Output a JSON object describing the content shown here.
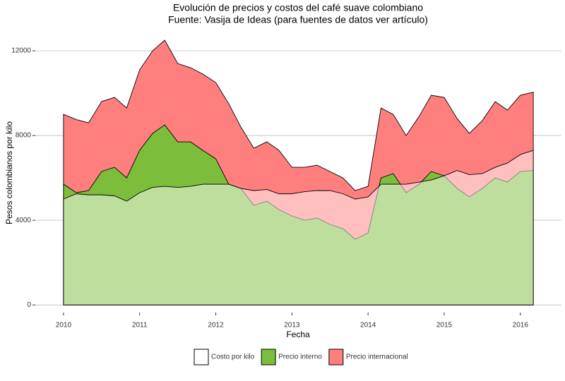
{
  "chart_data": {
    "type": "area",
    "title": "Evolución de precios y costos del café suave colombiano",
    "subtitle": "Fuente: Vasija de Ideas (para fuentes de datos ver artículo)",
    "x_label": "Fecha",
    "y_label": "Pesos colombianos por kilo",
    "x": [
      2010.0,
      2010.17,
      2010.33,
      2010.5,
      2010.67,
      2010.83,
      2011.0,
      2011.17,
      2011.33,
      2011.5,
      2011.67,
      2011.83,
      2012.0,
      2012.17,
      2012.33,
      2012.5,
      2012.67,
      2012.83,
      2013.0,
      2013.17,
      2013.33,
      2013.5,
      2013.67,
      2013.83,
      2014.0,
      2014.17,
      2014.33,
      2014.5,
      2014.67,
      2014.83,
      2015.0,
      2015.17,
      2015.33,
      2015.5,
      2015.67,
      2015.83,
      2016.0,
      2016.17
    ],
    "series": [
      {
        "name": "Precio internacional",
        "color": "#ff7f7f",
        "values": [
          9000,
          8750,
          8600,
          9600,
          9800,
          9300,
          11100,
          12000,
          12500,
          11400,
          11200,
          10900,
          10500,
          9500,
          8400,
          7400,
          7700,
          7300,
          6500,
          6500,
          6600,
          6300,
          6000,
          5400,
          5600,
          9300,
          9000,
          8000,
          8900,
          9900,
          9800,
          8800,
          8100,
          8700,
          9600,
          9200,
          9900,
          10050
        ]
      },
      {
        "name": "Precio interno",
        "color": "#7cbd3c",
        "values": [
          5700,
          5300,
          5400,
          6300,
          6500,
          6000,
          7300,
          8100,
          8500,
          7700,
          7700,
          7300,
          6900,
          5700,
          5500,
          4700,
          4900,
          4500,
          4200,
          4000,
          4100,
          3800,
          3600,
          3100,
          3400,
          6000,
          6200,
          5300,
          5700,
          6300,
          6100,
          5500,
          5100,
          5500,
          6000,
          5800,
          6300,
          6350
        ]
      },
      {
        "name": "Costo por kilo",
        "color": "#ffffff",
        "values": [
          5000,
          5250,
          5200,
          5200,
          5150,
          4900,
          5300,
          5550,
          5600,
          5550,
          5600,
          5700,
          5700,
          5700,
          5500,
          5400,
          5450,
          5250,
          5250,
          5350,
          5400,
          5400,
          5250,
          5000,
          5100,
          5700,
          5700,
          5700,
          5800,
          5900,
          6100,
          6350,
          6150,
          6200,
          6500,
          6700,
          7100,
          7300
        ]
      }
    ],
    "xlim": [
      2009.63,
      2016.54
    ],
    "xticks": [
      2010,
      2011,
      2012,
      2013,
      2014,
      2015,
      2016
    ],
    "ylim": [
      -360,
      12900
    ],
    "yticks": [
      0,
      4000,
      8000,
      12000
    ],
    "grid": true,
    "legend": "bottom"
  }
}
